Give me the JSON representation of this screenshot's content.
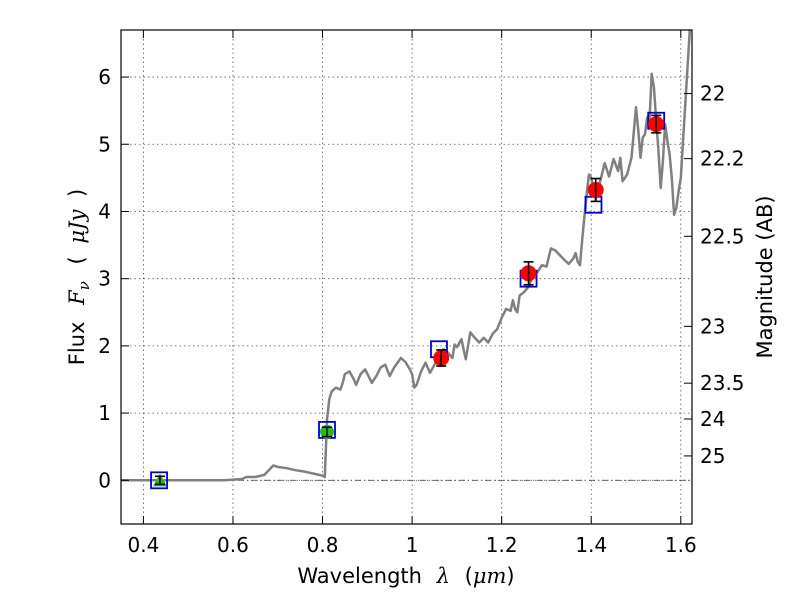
{
  "chart_data": {
    "type": "scatter",
    "xlabel": {
      "text": "Wavelength",
      "math": "λ",
      "unit_open": "(",
      "unit": "μm",
      "unit_close": ")"
    },
    "ylabel": {
      "text": "Flux",
      "math": "F",
      "sub": "ν",
      "unit_open": "(",
      "unit": "μJy",
      "unit_close": ")"
    },
    "y2label": "Magnitude (AB)",
    "xlim": [
      0.35,
      1.625
    ],
    "ylim": [
      -0.65,
      6.7
    ],
    "xticks": [
      0.4,
      0.6,
      0.8,
      1.0,
      1.2,
      1.4,
      1.6
    ],
    "xtick_labels": [
      "0.4",
      "0.6",
      "0.8",
      "1",
      "1.2",
      "1.4",
      "1.6"
    ],
    "yticks": [
      0,
      1,
      2,
      3,
      4,
      5,
      6
    ],
    "ytick_labels": [
      "0",
      "1",
      "2",
      "3",
      "4",
      "5",
      "6"
    ],
    "y2ticks": [
      {
        "label": "22",
        "mag": 22
      },
      {
        "label": "22.2",
        "mag": 22.2
      },
      {
        "label": "22.5",
        "mag": 22.5
      },
      {
        "label": "23",
        "mag": 23
      },
      {
        "label": "23.5",
        "mag": 23.5
      },
      {
        "label": "24",
        "mag": 24
      },
      {
        "label": "25",
        "mag": 25
      }
    ],
    "grid": true,
    "colors": {
      "model": "#808080",
      "model_photometry": "#0000cc",
      "detections_red": "#ff0000",
      "detections_green": "#22bb22",
      "errorbar": "#000000",
      "zero_line": "#555555"
    },
    "series": [
      {
        "kind": "model_spectrum",
        "points": [
          [
            0.35,
            0.0
          ],
          [
            0.4,
            0.0
          ],
          [
            0.45,
            0.0
          ],
          [
            0.5,
            0.0
          ],
          [
            0.55,
            0.0
          ],
          [
            0.58,
            0.0
          ],
          [
            0.6,
            0.01
          ],
          [
            0.62,
            0.02
          ],
          [
            0.63,
            0.05
          ],
          [
            0.65,
            0.05
          ],
          [
            0.67,
            0.08
          ],
          [
            0.68,
            0.15
          ],
          [
            0.69,
            0.22
          ],
          [
            0.7,
            0.2
          ],
          [
            0.72,
            0.18
          ],
          [
            0.74,
            0.15
          ],
          [
            0.76,
            0.13
          ],
          [
            0.78,
            0.1
          ],
          [
            0.8,
            0.07
          ],
          [
            0.805,
            0.05
          ],
          [
            0.81,
            0.9
          ],
          [
            0.815,
            1.2
          ],
          [
            0.82,
            1.32
          ],
          [
            0.83,
            1.38
          ],
          [
            0.84,
            1.35
          ],
          [
            0.845,
            1.45
          ],
          [
            0.85,
            1.58
          ],
          [
            0.86,
            1.62
          ],
          [
            0.87,
            1.5
          ],
          [
            0.875,
            1.42
          ],
          [
            0.885,
            1.58
          ],
          [
            0.895,
            1.65
          ],
          [
            0.905,
            1.52
          ],
          [
            0.91,
            1.45
          ],
          [
            0.92,
            1.55
          ],
          [
            0.93,
            1.68
          ],
          [
            0.94,
            1.72
          ],
          [
            0.95,
            1.55
          ],
          [
            0.96,
            1.68
          ],
          [
            0.975,
            1.82
          ],
          [
            0.985,
            1.76
          ],
          [
            0.995,
            1.65
          ],
          [
            1.0,
            1.58
          ],
          [
            1.005,
            1.38
          ],
          [
            1.01,
            1.42
          ],
          [
            1.02,
            1.62
          ],
          [
            1.03,
            1.75
          ],
          [
            1.04,
            1.6
          ],
          [
            1.05,
            1.72
          ],
          [
            1.06,
            1.85
          ],
          [
            1.07,
            1.95
          ],
          [
            1.08,
            1.9
          ],
          [
            1.09,
            1.82
          ],
          [
            1.095,
            2.02
          ],
          [
            1.1,
            1.98
          ],
          [
            1.11,
            2.1
          ],
          [
            1.115,
            1.95
          ],
          [
            1.12,
            1.8
          ],
          [
            1.13,
            2.2
          ],
          [
            1.14,
            2.12
          ],
          [
            1.15,
            2.05
          ],
          [
            1.16,
            2.12
          ],
          [
            1.17,
            2.05
          ],
          [
            1.18,
            2.18
          ],
          [
            1.19,
            2.25
          ],
          [
            1.2,
            2.42
          ],
          [
            1.21,
            2.55
          ],
          [
            1.22,
            2.52
          ],
          [
            1.225,
            2.68
          ],
          [
            1.23,
            2.55
          ],
          [
            1.235,
            2.5
          ],
          [
            1.24,
            2.75
          ],
          [
            1.25,
            2.8
          ],
          [
            1.26,
            2.88
          ],
          [
            1.27,
            3.05
          ],
          [
            1.28,
            3.1
          ],
          [
            1.29,
            3.2
          ],
          [
            1.3,
            3.18
          ],
          [
            1.31,
            3.45
          ],
          [
            1.32,
            3.42
          ],
          [
            1.33,
            3.35
          ],
          [
            1.34,
            3.28
          ],
          [
            1.35,
            3.22
          ],
          [
            1.36,
            3.3
          ],
          [
            1.365,
            3.38
          ],
          [
            1.37,
            3.25
          ],
          [
            1.375,
            3.2
          ],
          [
            1.38,
            3.6
          ],
          [
            1.39,
            4.28
          ],
          [
            1.395,
            4.55
          ],
          [
            1.4,
            4.5
          ],
          [
            1.405,
            4.35
          ],
          [
            1.41,
            4.18
          ],
          [
            1.42,
            4.45
          ],
          [
            1.43,
            4.72
          ],
          [
            1.44,
            4.52
          ],
          [
            1.45,
            4.78
          ],
          [
            1.46,
            4.6
          ],
          [
            1.465,
            4.8
          ],
          [
            1.47,
            4.45
          ],
          [
            1.48,
            4.55
          ],
          [
            1.49,
            4.8
          ],
          [
            1.5,
            5.55
          ],
          [
            1.505,
            5.2
          ],
          [
            1.51,
            4.8
          ],
          [
            1.515,
            5.1
          ],
          [
            1.52,
            5.15
          ],
          [
            1.525,
            5.4
          ],
          [
            1.53,
            5.35
          ],
          [
            1.535,
            6.05
          ],
          [
            1.54,
            5.85
          ],
          [
            1.545,
            5.35
          ],
          [
            1.55,
            4.92
          ],
          [
            1.555,
            4.35
          ],
          [
            1.56,
            4.75
          ],
          [
            1.565,
            5.3
          ],
          [
            1.57,
            5.05
          ],
          [
            1.575,
            4.85
          ],
          [
            1.58,
            4.5
          ],
          [
            1.585,
            3.95
          ],
          [
            1.59,
            4.05
          ],
          [
            1.595,
            4.3
          ],
          [
            1.6,
            4.5
          ],
          [
            1.61,
            5.6
          ],
          [
            1.62,
            6.7
          ]
        ]
      },
      {
        "kind": "model_photometry_squares",
        "points": [
          [
            0.435,
            0.0
          ],
          [
            0.81,
            0.75
          ],
          [
            1.06,
            1.95
          ],
          [
            1.26,
            3.0
          ],
          [
            1.405,
            4.1
          ],
          [
            1.545,
            5.35
          ]
        ]
      },
      {
        "kind": "detections_red",
        "points": [
          {
            "x": 1.065,
            "y": 1.82,
            "err": 0.12
          },
          {
            "x": 1.26,
            "y": 3.08,
            "err": 0.17
          },
          {
            "x": 1.41,
            "y": 4.32,
            "err": 0.17
          },
          {
            "x": 1.545,
            "y": 5.3,
            "err": 0.13
          }
        ]
      },
      {
        "kind": "detections_green",
        "points": [
          {
            "x": 0.81,
            "y": 0.72,
            "err": 0.07
          }
        ]
      },
      {
        "kind": "upper_limit_green_triangle",
        "points": [
          {
            "x": 0.437,
            "y": 0.0,
            "err": 0.06
          }
        ]
      }
    ]
  }
}
